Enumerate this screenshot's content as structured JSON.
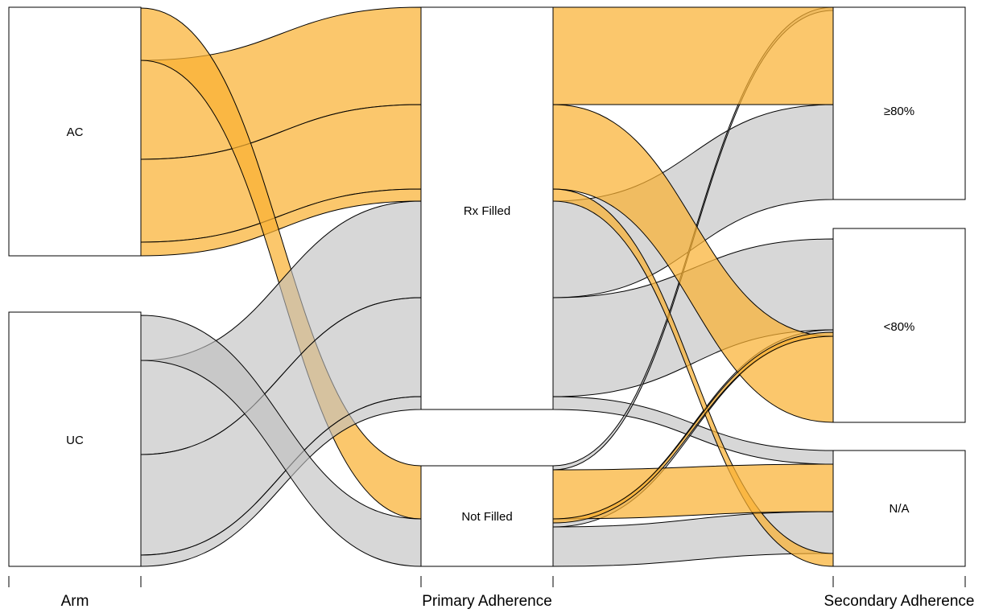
{
  "axes": [
    {
      "id": "arm",
      "label": "Arm"
    },
    {
      "id": "primary",
      "label": "Primary Adherence"
    },
    {
      "id": "secondary",
      "label": "Secondary Adherence"
    }
  ],
  "nodes": {
    "arm": [
      {
        "id": "AC",
        "label": "AC"
      },
      {
        "id": "UC",
        "label": "UC"
      }
    ],
    "primary": [
      {
        "id": "RX",
        "label": "Rx Filled"
      },
      {
        "id": "NF",
        "label": "Not Filled"
      }
    ],
    "secondary": [
      {
        "id": "GE80",
        "label": "≥80%"
      },
      {
        "id": "LT80",
        "label": "<80%"
      },
      {
        "id": "NA",
        "label": "N/A"
      }
    ]
  },
  "colors": {
    "AC": "#f9b233",
    "UC": "#bfbfbf"
  }
}
